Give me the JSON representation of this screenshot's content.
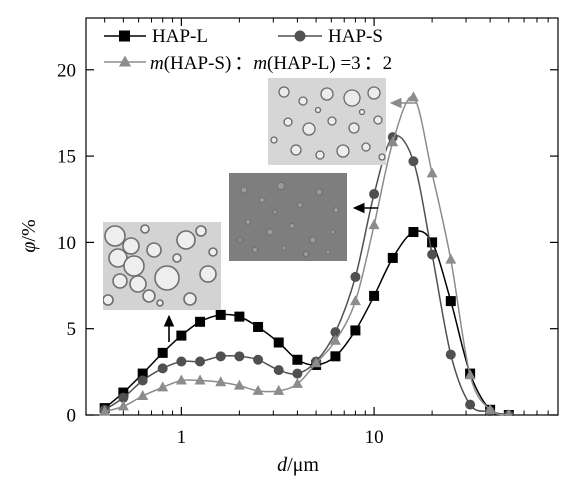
{
  "chart_data": {
    "type": "line",
    "x_scale": "log",
    "xlim": [
      0.32,
      90
    ],
    "ylim": [
      0,
      23
    ],
    "xlabel": {
      "var": "d",
      "unit": "/μm"
    },
    "ylabel": {
      "var": "φ",
      "unit": "/%"
    },
    "x_ticks": [
      {
        "value": 1,
        "label": "1"
      },
      {
        "value": 10,
        "label": "10"
      }
    ],
    "y_ticks": [
      {
        "value": 0,
        "label": "0"
      },
      {
        "value": 5,
        "label": "5"
      },
      {
        "value": 10,
        "label": "10"
      },
      {
        "value": 15,
        "label": "15"
      },
      {
        "value": 20,
        "label": "20"
      }
    ],
    "grid": false,
    "legend_position": "top-left",
    "legend_ratio": {
      "prefix": "m",
      "a": "(HAP-S)",
      "sep": "：",
      "mid": "m",
      "b": "(HAP-L) =3",
      "sep2": "：",
      "end": "2"
    },
    "series": [
      {
        "name": "HAP-L",
        "marker": "square",
        "color": "#000000",
        "x": [
          0.4,
          0.5,
          0.63,
          0.8,
          1.0,
          1.25,
          1.6,
          2.0,
          2.5,
          3.2,
          4.0,
          5.0,
          6.3,
          8.0,
          10.0,
          12.5,
          16.0,
          20.0,
          25.0,
          31.5,
          40.0,
          50.0
        ],
        "y": [
          0.4,
          1.3,
          2.4,
          3.6,
          4.6,
          5.4,
          5.8,
          5.7,
          5.1,
          4.2,
          3.2,
          2.9,
          3.4,
          4.9,
          6.9,
          9.1,
          10.6,
          10.0,
          6.6,
          2.4,
          0.3,
          0.0
        ]
      },
      {
        "name": "HAP-S",
        "marker": "circle",
        "color": "#505050",
        "x": [
          0.4,
          0.5,
          0.63,
          0.8,
          1.0,
          1.25,
          1.6,
          2.0,
          2.5,
          3.2,
          4.0,
          5.0,
          6.3,
          8.0,
          10.0,
          12.5,
          16.0,
          20.0,
          25.0,
          31.5,
          40.0,
          50.0
        ],
        "y": [
          0.3,
          1.0,
          2.0,
          2.7,
          3.1,
          3.1,
          3.4,
          3.4,
          3.2,
          2.6,
          2.4,
          3.1,
          4.8,
          8.0,
          12.8,
          16.1,
          14.7,
          9.3,
          3.5,
          0.6,
          0.2,
          0.0
        ]
      },
      {
        "name": "m(HAP-S)：m(HAP-L) =3：2",
        "marker": "triangle",
        "color": "#8c8c8c",
        "x": [
          0.4,
          0.5,
          0.63,
          0.8,
          1.0,
          1.25,
          1.6,
          2.0,
          2.5,
          3.2,
          4.0,
          5.0,
          6.3,
          8.0,
          10.0,
          12.5,
          16.0,
          20.0,
          25.0,
          31.5,
          40.0,
          50.0
        ],
        "y": [
          0.2,
          0.5,
          1.1,
          1.6,
          2.0,
          2.0,
          1.9,
          1.7,
          1.4,
          1.4,
          1.8,
          3.0,
          4.3,
          6.6,
          11.0,
          15.8,
          18.4,
          14.0,
          9.0,
          2.3,
          0.3,
          0.0
        ]
      }
    ]
  }
}
